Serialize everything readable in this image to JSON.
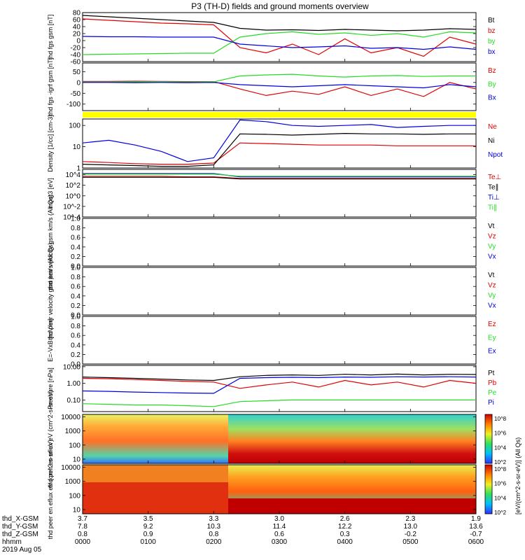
{
  "title": "P3 (TH-D) fields and ground moments overview",
  "time_axis": {
    "labels": [
      {
        "hhmm": "0000",
        "x_gsm": "3.7",
        "y_gsm": "7.8",
        "z_gsm": "0.8"
      },
      {
        "hhmm": "0100",
        "x_gsm": "3.5",
        "y_gsm": "9.2",
        "z_gsm": "0.9"
      },
      {
        "hhmm": "0200",
        "x_gsm": "3.3",
        "y_gsm": "10.3",
        "z_gsm": "0.8"
      },
      {
        "hhmm": "0300",
        "x_gsm": "3.0",
        "y_gsm": "11.4",
        "z_gsm": "0.6"
      },
      {
        "hhmm": "0400",
        "x_gsm": "2.6",
        "y_gsm": "12.2",
        "z_gsm": "0.3"
      },
      {
        "hhmm": "0500",
        "x_gsm": "2.3",
        "y_gsm": "13.0",
        "z_gsm": "-0.2"
      },
      {
        "hhmm": "0600",
        "x_gsm": "1.9",
        "y_gsm": "13.6",
        "z_gsm": "-0.7"
      }
    ],
    "row_names": [
      "thd_X-GSM",
      "thd_Y-GSM",
      "thd_Z-GSM",
      "hhmm"
    ],
    "date": "2019 Aug 05"
  },
  "colorbar_label": "[eV/(cm^2-s-sr-eV)] (All Qs)",
  "colors": {
    "black": "#000000",
    "red": "#e00000",
    "green": "#22dd22",
    "blue": "#0000e0",
    "yellow": "#ffff00"
  },
  "chart_data": [
    {
      "type": "line",
      "ylabel": "thd fgs gsm [nT]",
      "ylim": [
        -60,
        80
      ],
      "ticks": [
        "80",
        "60",
        "40",
        "20",
        "0",
        "-20",
        "-40",
        "-60"
      ],
      "series": [
        {
          "name": "Bt",
          "color": "black",
          "values": [
            72,
            68,
            64,
            60,
            56,
            52,
            35,
            30,
            31,
            29,
            32,
            30,
            28,
            30,
            34,
            32
          ]
        },
        {
          "name": "bz",
          "color": "red",
          "values": [
            62,
            58,
            54,
            50,
            48,
            45,
            -20,
            -35,
            -10,
            -40,
            5,
            -35,
            -20,
            -45,
            10,
            -10
          ]
        },
        {
          "name": "by",
          "color": "green",
          "values": [
            -40,
            -39,
            -38,
            -37,
            -36,
            -36,
            10,
            20,
            25,
            18,
            22,
            15,
            20,
            10,
            25,
            22
          ]
        },
        {
          "name": "bx",
          "color": "blue",
          "values": [
            12,
            11,
            11,
            10,
            10,
            10,
            -10,
            -15,
            -20,
            -18,
            -15,
            -22,
            -20,
            -25,
            -18,
            -25
          ]
        }
      ]
    },
    {
      "type": "line",
      "ylabel": "thd fgs -igrf gsm [nT]",
      "ylim": [
        -130,
        90
      ],
      "ticks": [
        "50",
        "0",
        "-50",
        "-100"
      ],
      "series": [
        {
          "name": "Bz",
          "color": "red",
          "values": [
            5,
            5,
            6,
            5,
            4,
            4,
            -30,
            -60,
            -40,
            -55,
            -20,
            -60,
            -30,
            -65,
            0,
            -30
          ]
        },
        {
          "name": "By",
          "color": "green",
          "values": [
            2,
            2,
            3,
            3,
            2,
            3,
            30,
            35,
            38,
            30,
            25,
            30,
            32,
            28,
            30,
            30
          ]
        },
        {
          "name": "Bx",
          "color": "blue",
          "values": [
            0,
            0,
            -1,
            0,
            -1,
            0,
            -10,
            -15,
            -20,
            -15,
            -10,
            -15,
            -20,
            -25,
            -10,
            -20
          ]
        }
      ]
    },
    {
      "type": "line",
      "ylabel": "Density [1/cc] [cm-3]",
      "scale": "log",
      "ylim": [
        1,
        200
      ],
      "ticks": [
        "100",
        "10",
        "1"
      ],
      "series": [
        {
          "name": "Ne",
          "color": "red",
          "values": [
            2,
            1.8,
            1.6,
            1.5,
            1.5,
            1.7,
            15,
            14,
            13,
            12,
            12,
            12,
            11,
            11,
            11,
            11
          ]
        },
        {
          "name": "Ni",
          "color": "black",
          "values": [
            1.5,
            1.4,
            1.3,
            1.2,
            1.2,
            1.4,
            40,
            38,
            35,
            38,
            42,
            40,
            40,
            38,
            40,
            40
          ]
        },
        {
          "name": "Npot",
          "color": "blue",
          "values": [
            15,
            20,
            12,
            6,
            2,
            3,
            180,
            150,
            100,
            90,
            100,
            110,
            80,
            90,
            100,
            100
          ]
        }
      ]
    },
    {
      "type": "line",
      "ylabel": "moqt3 [eV]",
      "scale": "log",
      "ylim": [
        -4,
        5
      ],
      "ticks": [
        "10^4",
        "10^2",
        "10^0",
        "10^-2",
        "10^-4"
      ],
      "series": [
        {
          "name": "Te⊥",
          "color": "red",
          "values": [
            3.7,
            3.7,
            3.7,
            3.7,
            3.6,
            3.6,
            3.3,
            3.3,
            3.3,
            3.3,
            3.3,
            3.3,
            3.3,
            3.3,
            3.3,
            3.3
          ]
        },
        {
          "name": "Te∥",
          "color": "black",
          "values": [
            3.5,
            3.5,
            3.5,
            3.5,
            3.5,
            3.5,
            3.2,
            3.2,
            3.2,
            3.2,
            3.2,
            3.2,
            3.2,
            3.2,
            3.2,
            3.2
          ]
        },
        {
          "name": "Ti⊥",
          "color": "blue",
          "values": [
            4.2,
            4.2,
            4.2,
            4.2,
            4.2,
            4.2,
            3.6,
            3.6,
            3.6,
            3.6,
            3.6,
            3.6,
            3.6,
            3.6,
            3.6,
            3.6
          ]
        },
        {
          "name": "Ti∥",
          "color": "green",
          "values": [
            4.1,
            4.1,
            4.1,
            4.1,
            4.1,
            4.1,
            3.7,
            3.7,
            3.7,
            3.7,
            3.7,
            3.7,
            3.7,
            3.7,
            3.7,
            3.7
          ]
        }
      ]
    },
    {
      "type": "line",
      "ylabel": "thd peir velocity gsm km/s (All Qs)",
      "ylim": [
        0,
        1
      ],
      "ticks": [
        "1.0",
        "0.8",
        "0.6",
        "0.4",
        "0.2",
        "0.0"
      ],
      "series": [
        {
          "name": "Vt",
          "color": "black",
          "values": []
        },
        {
          "name": "Vz",
          "color": "red",
          "values": []
        },
        {
          "name": "Vy",
          "color": "green",
          "values": []
        },
        {
          "name": "Vx",
          "color": "blue",
          "values": []
        }
      ]
    },
    {
      "type": "line",
      "ylabel": "thd peer velocity gsm km/s (All Qs)",
      "ylim": [
        0,
        1
      ],
      "ticks": [
        "1.0",
        "0.8",
        "0.6",
        "0.4",
        "0.2",
        "0.0"
      ],
      "series": [
        {
          "name": "Vt",
          "color": "black",
          "values": []
        },
        {
          "name": "Vz",
          "color": "red",
          "values": []
        },
        {
          "name": "Vy",
          "color": "green",
          "values": []
        },
        {
          "name": "Vx",
          "color": "blue",
          "values": []
        }
      ]
    },
    {
      "type": "line",
      "ylabel": "E=-VxB [mV/m]",
      "ylim": [
        0,
        1
      ],
      "ticks": [
        "1.0",
        "0.8",
        "0.6",
        "0.4",
        "0.2",
        "0.0"
      ],
      "series": [
        {
          "name": "Ez",
          "color": "red",
          "values": []
        },
        {
          "name": "Ey",
          "color": "green",
          "values": []
        },
        {
          "name": "Ex",
          "color": "blue",
          "values": []
        }
      ]
    },
    {
      "type": "line",
      "ylabel": "Pressure [nPa]",
      "scale": "log",
      "ylim": [
        0.02,
        12
      ],
      "ticks": [
        "10.00",
        "1.00",
        "0.10"
      ],
      "series": [
        {
          "name": "Pt",
          "color": "black",
          "values": [
            2.4,
            2.2,
            2.0,
            1.8,
            1.6,
            1.5,
            2.5,
            3.0,
            3.2,
            3.0,
            3.5,
            3.2,
            3.6,
            3.2,
            3.5,
            3.4
          ]
        },
        {
          "name": "Pb",
          "color": "red",
          "values": [
            2.0,
            1.9,
            1.7,
            1.5,
            1.3,
            1.2,
            0.5,
            0.8,
            1.2,
            0.6,
            1.5,
            0.8,
            1.2,
            0.6,
            1.5,
            1.0
          ]
        },
        {
          "name": "Pe",
          "color": "green",
          "values": [
            0.06,
            0.055,
            0.05,
            0.05,
            0.045,
            0.04,
            0.08,
            0.09,
            0.1,
            0.1,
            0.1,
            0.1,
            0.1,
            0.1,
            0.1,
            0.1
          ]
        },
        {
          "name": "Pi",
          "color": "blue",
          "values": [
            0.35,
            0.33,
            0.3,
            0.28,
            0.26,
            0.25,
            2.0,
            2.2,
            2.3,
            2.2,
            2.4,
            2.3,
            2.5,
            2.4,
            2.5,
            2.4
          ]
        }
      ]
    },
    {
      "type": "heatmap",
      "ylabel": "thd peir en eflux eV (cm^2-s-sr-eV)",
      "scale": "log",
      "ylim": [
        5,
        15000
      ],
      "ticks": [
        "10000",
        "1000",
        "100",
        "10"
      ],
      "colorbar_ticks": [
        "10^8",
        "10^6",
        "10^4",
        "10^2"
      ]
    },
    {
      "type": "heatmap",
      "ylabel": "thd peer en eflux eV (cm^2-s-sr-eV)",
      "scale": "log",
      "ylim": [
        5,
        15000
      ],
      "ticks": [
        "10000",
        "1000",
        "100",
        "10"
      ],
      "colorbar_ticks": [
        "10^8",
        "10^6",
        "10^4",
        "10^2"
      ]
    }
  ]
}
